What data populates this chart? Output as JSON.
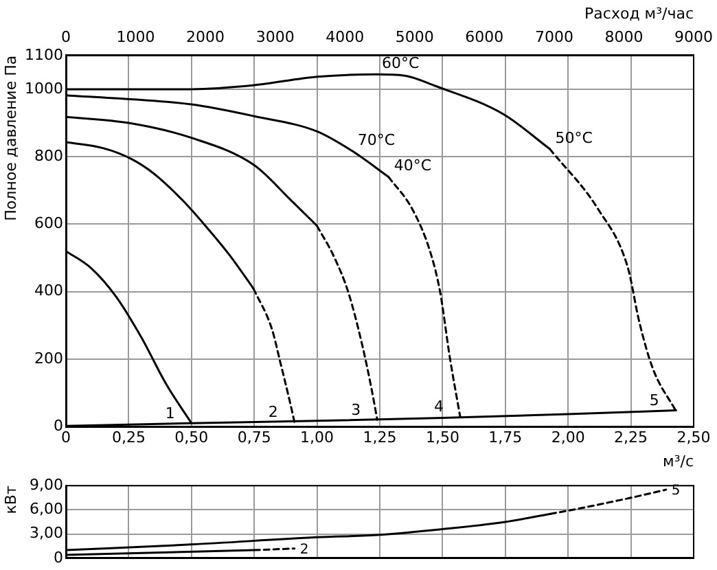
{
  "chart_data": [
    {
      "type": "line",
      "xlabel": "м³/с",
      "x2label": "Расход м³/час",
      "ylabel": "Полное давление Па",
      "xlim": [
        0,
        2.5
      ],
      "xticks": [
        0,
        {
          "value": 0.25,
          "label": "0,25"
        },
        {
          "value": 0.5,
          "label": "0,50"
        },
        {
          "value": 0.75,
          "label": "0,75"
        },
        {
          "value": 1,
          "label": "1,00"
        },
        {
          "value": 1.25,
          "label": "1,25"
        },
        {
          "value": 1.5,
          "label": "1,50"
        },
        {
          "value": 1.75,
          "label": "1,75"
        },
        {
          "value": 2,
          "label": "2,00"
        },
        {
          "value": 2.25,
          "label": "2,25"
        },
        {
          "value": 2.5,
          "label": "2,50"
        }
      ],
      "x2lim": [
        0,
        9000
      ],
      "x2ticks": [
        0,
        1000,
        2000,
        3000,
        4000,
        5000,
        6000,
        7000,
        8000,
        9000
      ],
      "ylim": [
        0,
        1100
      ],
      "yticks": [
        0,
        200,
        400,
        600,
        800,
        1000,
        1100
      ],
      "grid": true,
      "legend": false,
      "marker": "none",
      "series": [
        {
          "name": "1",
          "color": "#000000",
          "x": [
            0,
            0.1,
            0.2,
            0.3,
            0.4,
            0.5
          ],
          "values": [
            520,
            470,
            385,
            265,
            125,
            10
          ]
        },
        {
          "color": "#000000",
          "x": [
            0,
            0.15,
            0.264,
            0.35,
            0.463,
            0.55,
            0.65,
            0.747
          ],
          "values": [
            843,
            825,
            792,
            750,
            672,
            600,
            510,
            409
          ]
        },
        {
          "name": "2",
          "color": "#000000",
          "line_style": "dashed",
          "x": [
            0.747,
            0.82,
            0.855,
            0.89,
            0.91
          ],
          "values": [
            409,
            290,
            187,
            80,
            14
          ]
        },
        {
          "color": "#000000",
          "x": [
            0,
            0.25,
            0.5,
            0.75,
            0.895,
            1.0
          ],
          "values": [
            918,
            900,
            856,
            775,
            672,
            595
          ]
        },
        {
          "name": "3",
          "color": "#000000",
          "line_style": "dashed",
          "x": [
            1.0,
            1.07,
            1.126,
            1.18,
            1.215,
            1.24
          ],
          "values": [
            595,
            500,
            395,
            242,
            120,
            20
          ]
        },
        {
          "color": "#000000",
          "x": [
            0,
            0.5,
            0.75,
            1.0,
            1.14,
            1.285
          ],
          "values": [
            982,
            955,
            920,
            875,
            817,
            740
          ]
        },
        {
          "name": "4",
          "color": "#000000",
          "line_style": "dashed",
          "x": [
            1.285,
            1.38,
            1.45,
            1.49,
            1.53,
            1.57
          ],
          "values": [
            740,
            644,
            520,
            400,
            200,
            30
          ]
        },
        {
          "color": "#000000",
          "x": [
            0,
            0.5,
            0.75,
            1.0,
            1.236,
            1.35,
            1.47,
            1.74,
            1.927
          ],
          "values": [
            1000,
            1000,
            1012,
            1037,
            1044,
            1040,
            1010,
            927,
            823
          ]
        },
        {
          "name": "5",
          "color": "#000000",
          "line_style": "dashed",
          "x": [
            1.927,
            2.12,
            2.238,
            2.283,
            2.337,
            2.428
          ],
          "values": [
            823,
            644,
            471,
            312,
            173,
            48
          ]
        },
        {
          "color": "#000000",
          "x": [
            0,
            0.5,
            1.0,
            1.5,
            2.0,
            2.43
          ],
          "values": [
            2,
            10,
            17,
            26,
            37,
            48
          ]
        }
      ],
      "annotations": [
        {
          "text": "60°C",
          "x": 1.236,
          "y": 1044
        },
        {
          "text": "70°C",
          "x": 1.14,
          "y": 817
        },
        {
          "text": "40°C",
          "x": 1.285,
          "y": 740
        },
        {
          "text": "50°C",
          "x": 1.927,
          "y": 823
        }
      ]
    },
    {
      "type": "line",
      "ylabel": "кВт",
      "xlim": [
        0,
        2.5
      ],
      "xticks": [
        0,
        0.25,
        0.5,
        0.75,
        1,
        1.25,
        1.5,
        1.75,
        2,
        2.25,
        2.5
      ],
      "ylim": [
        0,
        9
      ],
      "yticks": [
        0,
        {
          "value": 3,
          "label": "3,00"
        },
        {
          "value": 6,
          "label": "6,00"
        },
        {
          "value": 9,
          "label": "9,00"
        }
      ],
      "grid": true,
      "legend": false,
      "marker": "none",
      "tick_labels": "y",
      "series": [
        {
          "color": "#000000",
          "x": [
            0,
            0.5,
            1.0,
            1.25,
            1.5,
            1.75,
            1.93
          ],
          "values": [
            1.0,
            1.7,
            2.6,
            2.9,
            3.6,
            4.5,
            5.5
          ]
        },
        {
          "name": "5",
          "color": "#000000",
          "line_style": "dashed",
          "x": [
            1.93,
            2.0,
            2.25,
            2.39
          ],
          "values": [
            5.5,
            5.9,
            7.5,
            8.5
          ]
        },
        {
          "color": "#000000",
          "x": [
            0,
            0.75
          ],
          "values": [
            0.4,
            1.0
          ]
        },
        {
          "name": "2",
          "color": "#000000",
          "line_style": "dashed",
          "x": [
            0.75,
            0.91
          ],
          "values": [
            1.0,
            1.2
          ]
        }
      ]
    }
  ]
}
